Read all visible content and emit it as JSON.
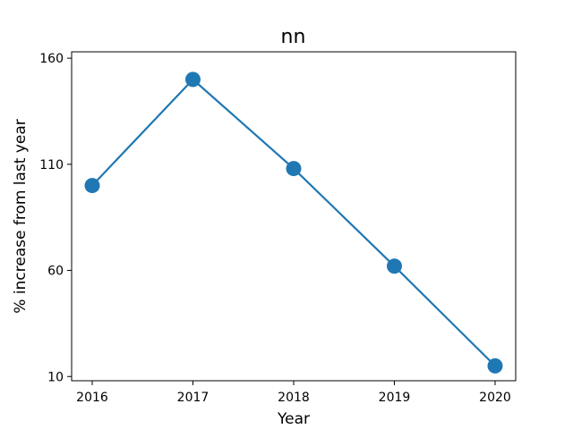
{
  "chart_data": {
    "type": "line",
    "title": "nn",
    "xlabel": "Year",
    "ylabel": "% increase from last year",
    "x": [
      "2016",
      "2017",
      "2018",
      "2019",
      "2020"
    ],
    "series": [
      {
        "values": [
          100,
          150,
          108,
          62,
          15
        ]
      }
    ],
    "yticks": [
      10,
      60,
      110,
      160
    ],
    "ylim": [
      8,
      163
    ],
    "grid": false,
    "line_color": "#1f77b4",
    "marker_color": "#1f77b4"
  }
}
